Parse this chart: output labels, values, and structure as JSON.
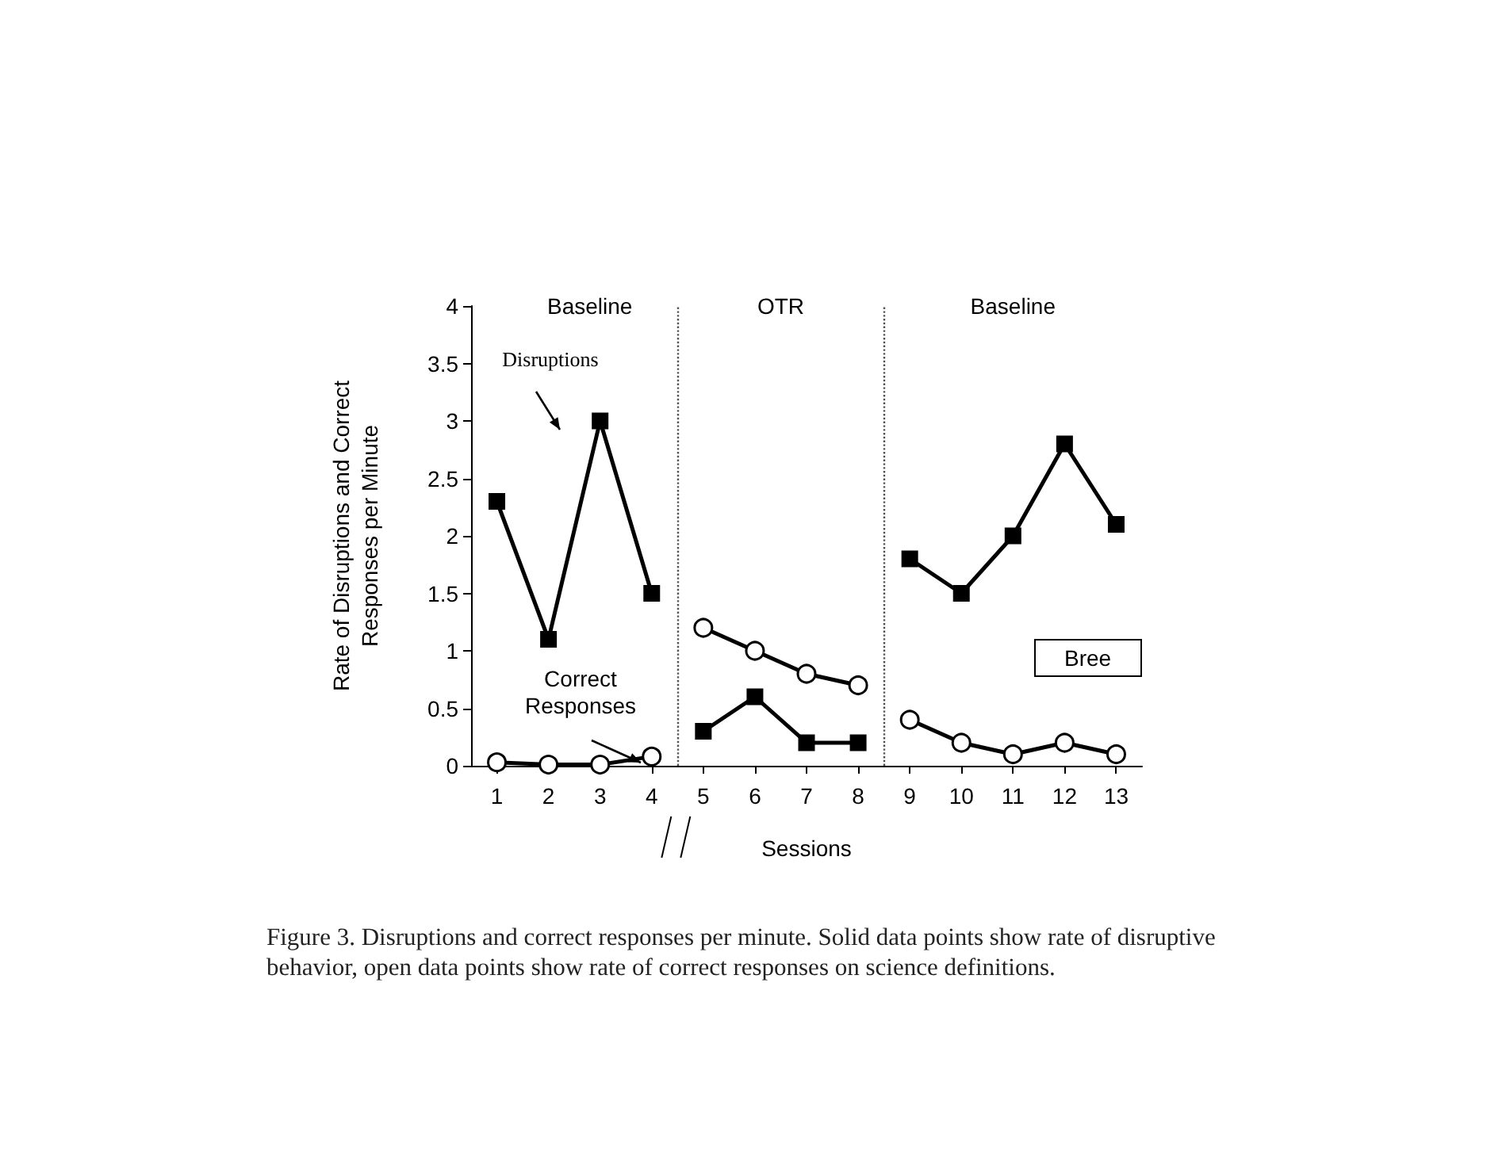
{
  "chart_data": {
    "type": "line",
    "xlabel": "Sessions",
    "ylabel": "Rate of Disruptions and Correct\nResponses per Minute",
    "x": [
      1,
      2,
      3,
      4,
      5,
      6,
      7,
      8,
      9,
      10,
      11,
      12,
      13
    ],
    "xlim": [
      0.5,
      13.5
    ],
    "xticks": [
      1,
      2,
      3,
      4,
      5,
      6,
      7,
      8,
      9,
      10,
      11,
      12,
      13
    ],
    "ylim": [
      0,
      4
    ],
    "yticks": [
      0,
      0.5,
      1,
      1.5,
      2,
      2.5,
      3,
      3.5,
      4
    ],
    "grid": false,
    "line_style": "solid",
    "series": [
      {
        "color": "#000000",
        "marker": "square",
        "values": [
          2.3,
          1.1,
          3.0,
          1.5,
          0.3,
          0.6,
          0.2,
          0.2,
          1.8,
          1.5,
          2.0,
          2.8,
          2.1
        ]
      },
      {
        "color": "#000000",
        "marker": "circle",
        "values": [
          0.03,
          0.01,
          0.01,
          0.08,
          1.2,
          1.0,
          0.8,
          0.7,
          0.4,
          0.2,
          0.1,
          0.2,
          0.1
        ]
      }
    ],
    "ref_lines": [
      {
        "axis": "x",
        "value": 4.5,
        "line_style": "dotted",
        "color": "#555555"
      },
      {
        "axis": "x",
        "value": 8.5,
        "line_style": "dotted",
        "color": "#555555"
      }
    ],
    "annotations": [
      "Baseline",
      "OTR",
      "Baseline",
      "Disruptions",
      "Correct\nResponses",
      "Bree",
      "Figure 3. Disruptions and correct responses per minute. Solid data points show rate of disruptive behavior, open data points show rate of correct responses on science definitions."
    ]
  }
}
